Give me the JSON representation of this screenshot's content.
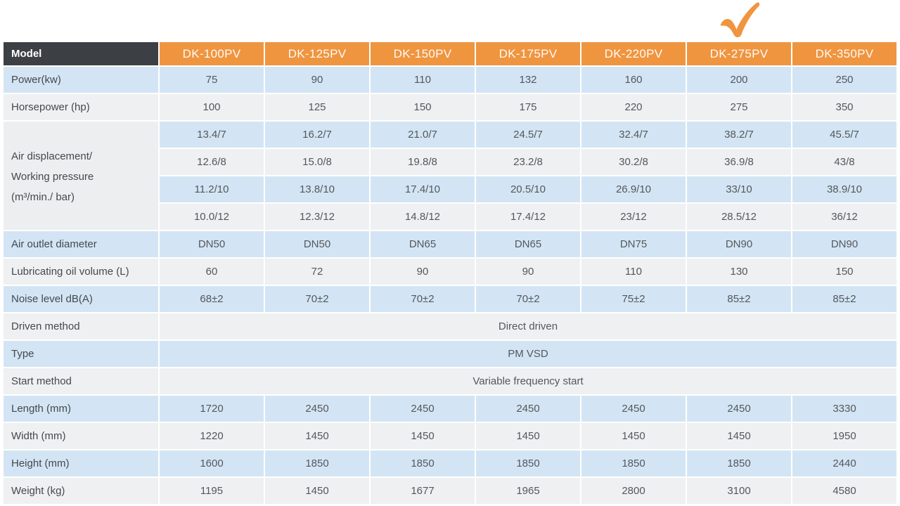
{
  "checkmark": {
    "marked_column": "DK-275PV",
    "color": "#F0953F"
  },
  "colors": {
    "accent_orange": "#F0953F",
    "corner_dark": "#3C3F44",
    "row_blue": "#D3E5F4",
    "row_gray": "#EEF0F2"
  },
  "chart_data": {
    "type": "table",
    "corner_label": "Model",
    "columns": [
      "DK-100PV",
      "DK-125PV",
      "DK-150PV",
      "DK-175PV",
      "DK-220PV",
      "DK-275PV",
      "DK-350PV"
    ],
    "rows": [
      {
        "type": "data",
        "label": "Power(kw)",
        "values": [
          "75",
          "90",
          "110",
          "132",
          "160",
          "200",
          "250"
        ]
      },
      {
        "type": "data",
        "label": "Horsepower (hp)",
        "values": [
          "100",
          "125",
          "150",
          "175",
          "220",
          "275",
          "350"
        ]
      },
      {
        "type": "group",
        "label_lines": [
          "Air displacement/",
          "Working pressure",
          "(m³/min./ bar)"
        ],
        "subrows": [
          [
            "13.4/7",
            "16.2/7",
            "21.0/7",
            "24.5/7",
            "32.4/7",
            "38.2/7",
            "45.5/7"
          ],
          [
            "12.6/8",
            "15.0/8",
            "19.8/8",
            "23.2/8",
            "30.2/8",
            "36.9/8",
            "43/8"
          ],
          [
            "11.2/10",
            "13.8/10",
            "17.4/10",
            "20.5/10",
            "26.9/10",
            "33/10",
            "38.9/10"
          ],
          [
            "10.0/12",
            "12.3/12",
            "14.8/12",
            "17.4/12",
            "23/12",
            "28.5/12",
            "36/12"
          ]
        ]
      },
      {
        "type": "data",
        "label": "Air outlet diameter",
        "values": [
          "DN50",
          "DN50",
          "DN65",
          "DN65",
          "DN75",
          "DN90",
          "DN90"
        ]
      },
      {
        "type": "data",
        "label": "Lubricating oil volume (L)",
        "values": [
          "60",
          "72",
          "90",
          "90",
          "110",
          "130",
          "150"
        ]
      },
      {
        "type": "data",
        "label": "Noise level dB(A)",
        "values": [
          "68±2",
          "70±2",
          "70±2",
          "70±2",
          "75±2",
          "85±2",
          "85±2"
        ]
      },
      {
        "type": "merged",
        "label": "Driven method",
        "value": "Direct driven"
      },
      {
        "type": "merged",
        "label": "Type",
        "value": "PM VSD"
      },
      {
        "type": "merged",
        "label": "Start method",
        "value": "Variable frequency start"
      },
      {
        "type": "data",
        "label": "Length (mm)",
        "values": [
          "1720",
          "2450",
          "2450",
          "2450",
          "2450",
          "2450",
          "3330"
        ]
      },
      {
        "type": "data",
        "label": "Width (mm)",
        "values": [
          "1220",
          "1450",
          "1450",
          "1450",
          "1450",
          "1450",
          "1950"
        ]
      },
      {
        "type": "data",
        "label": "Height (mm)",
        "values": [
          "1600",
          "1850",
          "1850",
          "1850",
          "1850",
          "1850",
          "2440"
        ]
      },
      {
        "type": "data",
        "label": "Weight (kg)",
        "values": [
          "1195",
          "1450",
          "1677",
          "1965",
          "2800",
          "3100",
          "4580"
        ]
      }
    ]
  }
}
